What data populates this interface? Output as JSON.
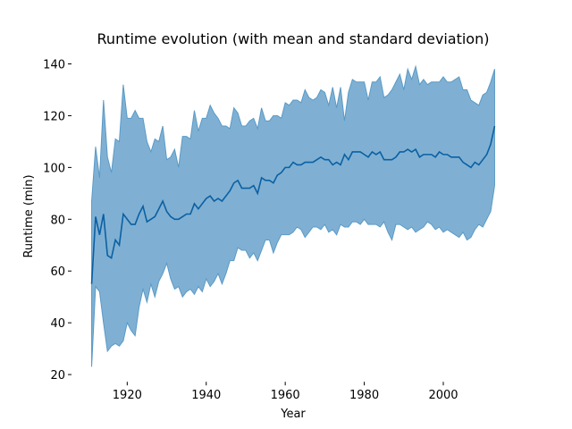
{
  "chart_data": {
    "type": "line",
    "title": "Runtime evolution (with mean and standard deviation)",
    "x_label": "Year",
    "y_label": "Runtime (min)",
    "x": [
      1911,
      1912,
      1913,
      1914,
      1915,
      1916,
      1917,
      1918,
      1919,
      1920,
      1921,
      1922,
      1923,
      1924,
      1925,
      1926,
      1927,
      1928,
      1929,
      1930,
      1931,
      1932,
      1933,
      1934,
      1935,
      1936,
      1937,
      1938,
      1939,
      1940,
      1941,
      1942,
      1943,
      1944,
      1945,
      1946,
      1947,
      1948,
      1949,
      1950,
      1951,
      1952,
      1953,
      1954,
      1955,
      1956,
      1957,
      1958,
      1959,
      1960,
      1961,
      1962,
      1963,
      1964,
      1965,
      1966,
      1967,
      1968,
      1969,
      1970,
      1971,
      1972,
      1973,
      1974,
      1975,
      1976,
      1977,
      1978,
      1979,
      1980,
      1981,
      1982,
      1983,
      1984,
      1985,
      1986,
      1987,
      1988,
      1989,
      1990,
      1991,
      1992,
      1993,
      1994,
      1995,
      1996,
      1997,
      1998,
      1999,
      2000,
      2001,
      2002,
      2003,
      2004,
      2005,
      2006,
      2007,
      2008,
      2009,
      2010,
      2011,
      2012,
      2013
    ],
    "series": [
      {
        "color": "#0b60a3",
        "values": [
          55,
          81,
          74,
          82,
          66,
          65,
          72,
          70,
          82,
          80,
          78,
          78,
          82,
          85,
          79,
          80,
          81,
          84,
          87,
          83,
          81,
          80,
          80,
          81,
          82,
          82,
          86,
          84,
          86,
          88,
          89,
          87,
          88,
          87,
          89,
          91,
          94,
          95,
          92,
          92,
          92,
          93,
          90,
          96,
          95,
          95,
          94,
          97,
          98,
          100,
          100,
          102,
          101,
          101,
          102,
          102,
          102,
          103,
          104,
          103,
          103,
          101,
          102,
          101,
          105,
          103,
          106,
          106,
          106,
          105,
          104,
          106,
          105,
          106,
          103,
          103,
          103,
          104,
          106,
          106,
          107,
          106,
          107,
          104,
          105,
          105,
          105,
          104,
          106,
          105,
          105,
          104,
          104,
          104,
          102,
          101,
          100,
          102,
          101,
          103,
          105,
          109,
          116
        ]
      }
    ],
    "band": {
      "color": "#7fb0d3",
      "edge_color": "#5a9ac6",
      "upper": [
        87,
        108,
        96,
        126,
        104,
        98,
        111,
        110,
        132,
        119,
        119,
        122,
        119,
        119,
        110,
        106,
        111,
        110,
        116,
        103,
        104,
        107,
        100,
        112,
        112,
        111,
        122,
        114,
        119,
        119,
        124,
        121,
        119,
        116,
        116,
        115,
        123,
        121,
        116,
        116,
        118,
        119,
        115,
        123,
        118,
        118,
        120,
        120,
        119,
        125,
        124,
        126,
        126,
        125,
        130,
        127,
        126,
        127,
        130,
        129,
        124,
        131,
        123,
        131,
        118,
        129,
        134,
        133,
        133,
        133,
        126,
        133,
        133,
        135,
        127,
        128,
        130,
        133,
        136,
        130,
        138,
        134,
        139,
        132,
        134,
        132,
        133,
        133,
        133,
        135,
        133,
        133,
        134,
        135,
        130,
        130,
        126,
        125,
        124,
        128,
        129,
        133,
        138
      ],
      "lower": [
        23,
        54,
        52,
        40,
        29,
        31,
        32,
        31,
        33,
        40,
        37,
        35,
        46,
        53,
        48,
        55,
        50,
        56,
        59,
        63,
        57,
        53,
        54,
        50,
        52,
        53,
        51,
        54,
        52,
        57,
        54,
        56,
        59,
        55,
        59,
        64,
        64,
        69,
        68,
        68,
        65,
        67,
        64,
        68,
        72,
        72,
        67,
        71,
        74,
        74,
        74,
        75,
        77,
        76,
        73,
        75,
        77,
        77,
        76,
        78,
        75,
        76,
        74,
        78,
        77,
        77,
        79,
        79,
        78,
        80,
        78,
        78,
        78,
        77,
        79,
        75,
        72,
        78,
        78,
        77,
        76,
        77,
        75,
        76,
        77,
        79,
        78,
        76,
        77,
        75,
        76,
        75,
        74,
        73,
        75,
        72,
        73,
        76,
        78,
        77,
        80,
        83,
        93
      ]
    },
    "xlim": [
      1905.9,
      2018.1
    ],
    "ylim": [
      17.2,
      144.8
    ],
    "xticks": [
      1920,
      1940,
      1960,
      1980,
      2000
    ],
    "yticks": [
      20,
      40,
      60,
      80,
      100,
      120,
      140
    ]
  }
}
